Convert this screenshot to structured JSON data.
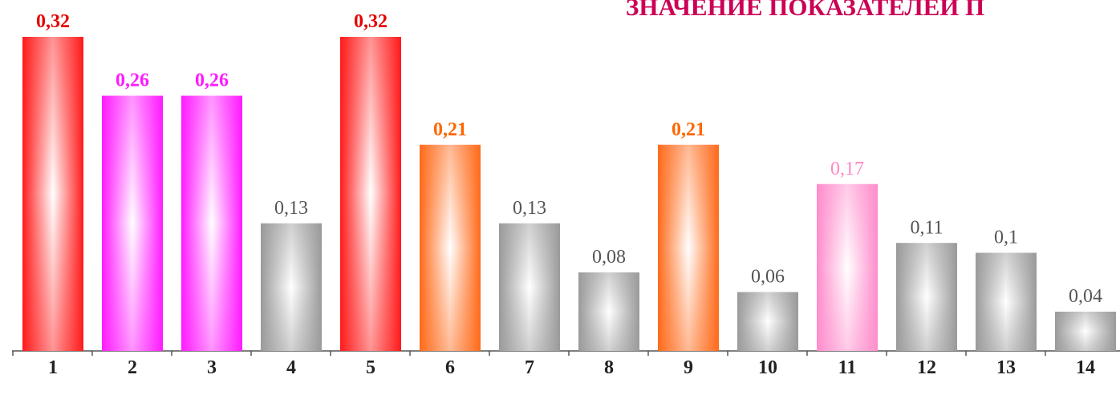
{
  "chart_data": {
    "type": "bar",
    "title": "ЗНАЧЕНИЕ ПОКАЗАТЕЛЕЙ П",
    "categories": [
      "1",
      "2",
      "3",
      "4",
      "5",
      "6",
      "7",
      "8",
      "9",
      "10",
      "11",
      "12",
      "13",
      "14"
    ],
    "values": [
      0.32,
      0.26,
      0.26,
      0.13,
      0.32,
      0.21,
      0.13,
      0.08,
      0.21,
      0.06,
      0.17,
      0.11,
      0.1,
      0.04
    ],
    "value_labels": [
      "0,32",
      "0,26",
      "0,26",
      "0,13",
      "0,32",
      "0,21",
      "0,13",
      "0,08",
      "0,21",
      "0,06",
      "0,17",
      "0,11",
      "0,1",
      "0,04"
    ],
    "colors": [
      "#ff1a1a",
      "#ff1aff",
      "#ff1aff",
      "#9a9a9a",
      "#ff1a1a",
      "#ff6a1a",
      "#9a9a9a",
      "#9a9a9a",
      "#ff6a1a",
      "#9a9a9a",
      "#ff8ccc",
      "#9a9a9a",
      "#9a9a9a",
      "#9a9a9a"
    ],
    "label_colors": [
      "#e60000",
      "#ff1aff",
      "#ff1aff",
      "#555555",
      "#e60000",
      "#ff6600",
      "#555555",
      "#555555",
      "#ff6600",
      "#555555",
      "#ff88c8",
      "#555555",
      "#555555",
      "#555555"
    ],
    "label_bold": [
      true,
      true,
      true,
      false,
      true,
      true,
      false,
      false,
      true,
      false,
      false,
      false,
      false,
      false
    ]
  }
}
